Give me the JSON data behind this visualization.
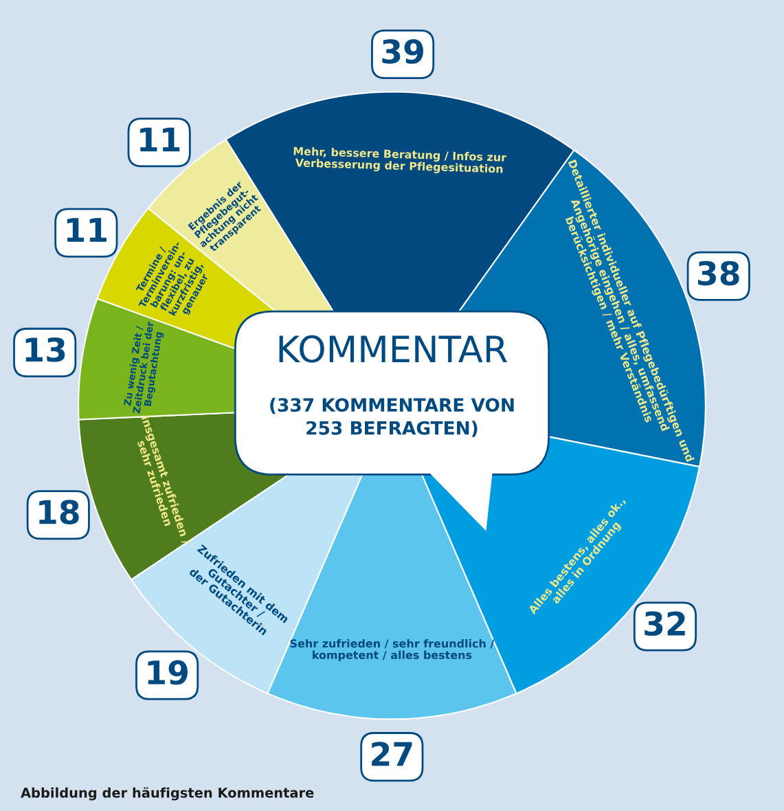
{
  "chart_data": {
    "type": "pie",
    "title": "KOMMENTAR",
    "subtitle": "(337 KOMMENTARE VON\n253 BEFRAGTEN)",
    "categories": [
      "Mehr, bessere Beratung / Infos zur\nVerbesserung der Pflegesituation",
      "Detaillierter individueller auf Pflegebedürftigen und\nAngehörige eingehen / alles, umfassend\nberücksichtigen / mehr Verständnis",
      "Alles bestens, alles ok.,\nalles in Ordnung",
      "Sehr zufrieden / sehr freundlich /\nkompetent / alles bestens",
      "Zufrieden mit dem\nGutachter /\nder Gutachterin",
      "Insgesamt zufrieden /\nsehr zufrieden",
      "Zu wenig Zeit /\nZeitdruck bei der\nBegutachtung",
      "Termine /\nTerminverein-\nbarung: un-\nflexibel, zu\nkurzfristig,\ngenauer",
      "Ergebnis der\nPflegebegut-\nachtung nicht\ntransparent"
    ],
    "values": [
      39,
      38,
      32,
      27,
      19,
      18,
      13,
      11,
      11
    ],
    "colors": [
      "#004a80",
      "#0072b0",
      "#009ee0",
      "#5bc5ee",
      "#bde3f6",
      "#4f7d1e",
      "#7ab51d",
      "#d8d800",
      "#eeeb9c"
    ],
    "data_labels": true,
    "legend": false,
    "annotations": [
      "Abbildung der häufigsten Kommentare"
    ]
  }
}
